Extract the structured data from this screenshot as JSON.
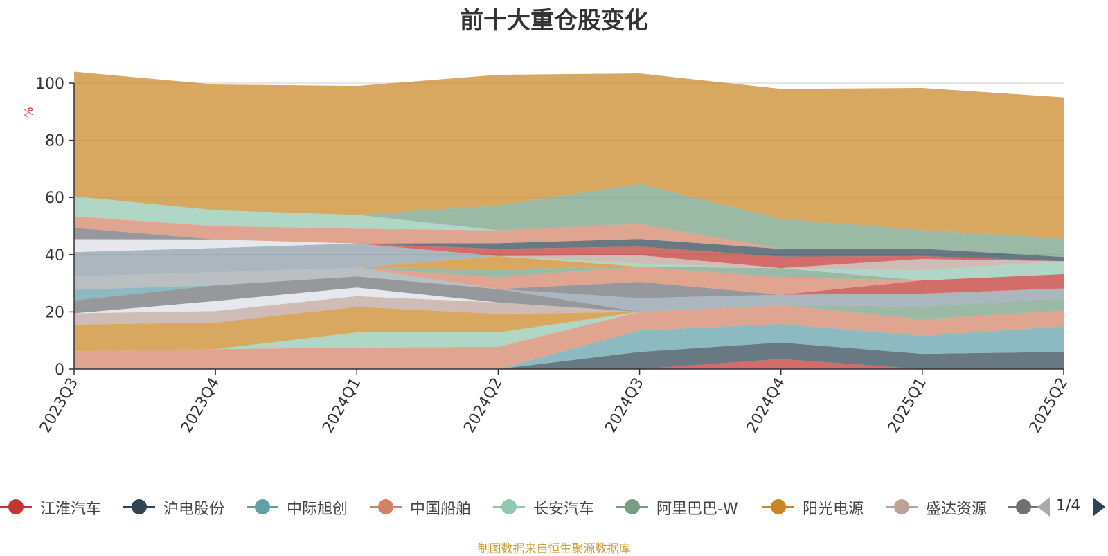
{
  "title": "前十大重仓股变化",
  "source_note": "制图数据来自恒生聚源数据库",
  "pager": {
    "text": "1/4"
  },
  "legend": [
    {
      "name": "江淮汽车",
      "color": "#c23531"
    },
    {
      "name": "沪电股份",
      "color": "#2f4554"
    },
    {
      "name": "中际旭创",
      "color": "#61a0a8"
    },
    {
      "name": "中国船舶",
      "color": "#d48265"
    },
    {
      "name": "长安汽车",
      "color": "#91c7ae"
    },
    {
      "name": "阿里巴巴-W",
      "color": "#749f83"
    },
    {
      "name": "阳光电源",
      "color": "#ca8622"
    },
    {
      "name": "盛达资源",
      "color": "#bda29a"
    },
    {
      "name": "",
      "color": "#6e7074"
    }
  ],
  "chart_data": {
    "type": "area",
    "stacked": true,
    "title": "前十大重仓股变化",
    "ylabel": "%",
    "ylim": [
      0,
      100
    ],
    "yticks": [
      0,
      20,
      40,
      60,
      80,
      100
    ],
    "grid": true,
    "categories": [
      "2023Q3",
      "2023Q4",
      "2024Q1",
      "2024Q2",
      "2024Q3",
      "2024Q4",
      "2025Q1",
      "2025Q2"
    ],
    "series": [
      {
        "color": "#c23531",
        "values": [
          0,
          0,
          0,
          0,
          0,
          3.5,
          0,
          0
        ]
      },
      {
        "color": "#2f4554",
        "values": [
          0,
          0,
          0,
          0,
          6.0,
          5.8,
          5.3,
          6.0
        ]
      },
      {
        "color": "#61a0a8",
        "values": [
          0,
          0,
          0,
          0,
          7.5,
          6.5,
          6.3,
          9.0
        ]
      },
      {
        "color": "#d48265",
        "values": [
          6.2,
          7.0,
          7.5,
          7.8,
          6.5,
          6.5,
          5.8,
          5.5
        ]
      },
      {
        "color": "#91c7ae",
        "values": [
          0,
          0,
          5.3,
          5.0,
          0,
          0,
          0,
          0
        ]
      },
      {
        "color": "#ca8622",
        "values": [
          9.3,
          9.3,
          9.0,
          6.5,
          0,
          0,
          0,
          0
        ]
      },
      {
        "color": "#bda29a",
        "values": [
          4.0,
          4.0,
          3.7,
          4.0,
          0,
          0,
          0,
          0
        ]
      },
      {
        "color": "#dcdfe6",
        "values": [
          0,
          3.5,
          3.0,
          0,
          0,
          0,
          0,
          0
        ]
      },
      {
        "color": "#6e7074",
        "values": [
          4.5,
          5.5,
          3.9,
          4.7,
          0,
          0,
          0,
          0
        ]
      },
      {
        "color": "#749f83",
        "values": [
          0,
          0,
          0,
          0,
          0,
          0,
          4.5,
          4.2
        ]
      },
      {
        "color": "#8a9aa5",
        "values": [
          0,
          0,
          0,
          0,
          4.8,
          3.7,
          4.5,
          3.5
        ]
      },
      {
        "color": "#c23531",
        "values": [
          0,
          0,
          0,
          0,
          0,
          0,
          4.6,
          5.0
        ]
      },
      {
        "color": "#61a0a8",
        "values": [
          3.8,
          0,
          0,
          0,
          0,
          0,
          0,
          0
        ]
      },
      {
        "color": "#a0a6ab",
        "values": [
          4.6,
          4.5,
          3.0,
          0,
          0,
          0,
          0,
          0
        ]
      },
      {
        "color": "#6e7074",
        "values": [
          0,
          0,
          0,
          0,
          5.7,
          0,
          0,
          0
        ]
      },
      {
        "color": "#d48265",
        "values": [
          0,
          0,
          0,
          4.0,
          5.3,
          6.0,
          0,
          0
        ]
      },
      {
        "color": "#749f83",
        "values": [
          0,
          0,
          0,
          3.0,
          0,
          3.3,
          0,
          0
        ]
      },
      {
        "color": "#ca8622",
        "values": [
          0,
          0,
          0,
          4.5,
          0,
          0,
          0,
          0
        ]
      },
      {
        "color": "#91c7ae",
        "values": [
          0,
          0,
          0,
          0,
          1.0,
          0,
          3.5,
          4.5
        ]
      },
      {
        "color": "#bda29a",
        "values": [
          0,
          0,
          0,
          0,
          3.0,
          0,
          4.0,
          0
        ]
      },
      {
        "color": "#8a9aa5",
        "values": [
          8.5,
          8.5,
          8.5,
          0,
          0,
          0,
          0,
          0
        ]
      },
      {
        "color": "#c23531",
        "values": [
          0,
          0,
          0,
          2.5,
          3.0,
          4.0,
          1.0,
          0
        ]
      },
      {
        "color": "#dcdfe6",
        "values": [
          4.5,
          3.0,
          0,
          0,
          0,
          0,
          0,
          0
        ]
      },
      {
        "color": "#6e7074",
        "values": [
          4.0,
          0,
          0,
          0,
          0,
          0,
          0,
          0
        ]
      },
      {
        "color": "#2f4554",
        "values": [
          0,
          0,
          0,
          2.0,
          2.7,
          2.7,
          2.6,
          1.5
        ]
      },
      {
        "color": "#d48265",
        "values": [
          4.0,
          4.7,
          5.2,
          4.5,
          5.2,
          0,
          0,
          0
        ]
      },
      {
        "color": "#91c7ae",
        "values": [
          7.0,
          5.5,
          4.8,
          0,
          0,
          0,
          0,
          0
        ]
      },
      {
        "color": "#749f83",
        "values": [
          0,
          0,
          0,
          8.7,
          14.0,
          10.5,
          6.5,
          6.5
        ]
      },
      {
        "color": "#ca8622",
        "values": [
          43.6,
          44.0,
          45.1,
          45.7,
          38.7,
          45.5,
          49.7,
          49.3
        ]
      }
    ]
  }
}
